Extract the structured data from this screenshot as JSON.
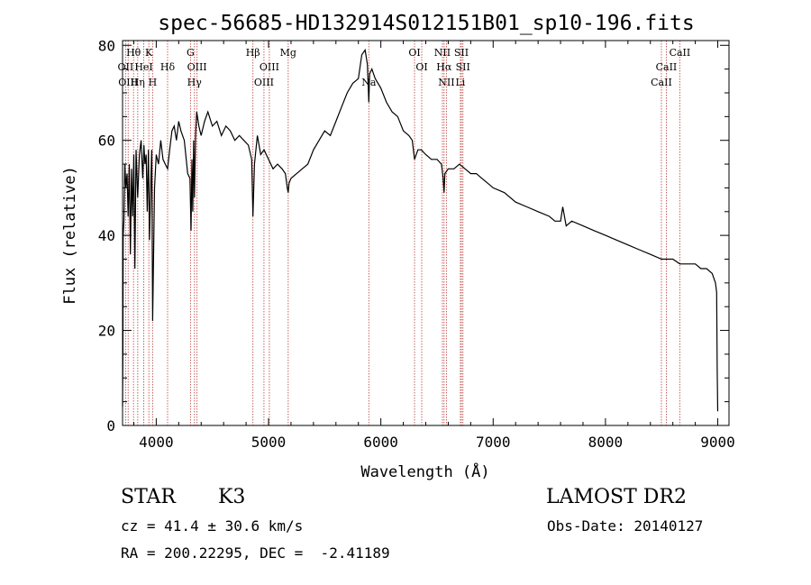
{
  "chart_data": {
    "type": "line",
    "title": "spec-56685-HD132914S012151B01_sp10-196.fits",
    "xlabel": "Wavelength (Å)",
    "ylabel": "Flux (relative)",
    "xlim": [
      3700,
      9100
    ],
    "ylim": [
      0,
      81
    ],
    "xticks": [
      4000,
      5000,
      6000,
      7000,
      8000,
      9000
    ],
    "yticks": [
      0,
      20,
      40,
      60,
      80
    ],
    "line_color": "#000000",
    "marker_color": "#c0504d",
    "grid": false,
    "series": [
      {
        "x": [
          3700,
          3703,
          3706,
          3712,
          3720,
          3730,
          3740,
          3750,
          3760,
          3770,
          3780,
          3790,
          3800,
          3810,
          3820,
          3835,
          3850,
          3865,
          3880,
          3890,
          3900,
          3910,
          3920,
          3930,
          3940,
          3950,
          3960,
          3968,
          3975,
          3985,
          4000,
          4020,
          4040,
          4060,
          4080,
          4101,
          4120,
          4140,
          4160,
          4180,
          4200,
          4220,
          4250,
          4280,
          4300,
          4310,
          4318,
          4325,
          4333,
          4340,
          4350,
          4360,
          4380,
          4400,
          4430,
          4460,
          4500,
          4540,
          4580,
          4620,
          4660,
          4700,
          4740,
          4780,
          4820,
          4850,
          4861,
          4875,
          4900,
          4930,
          4960,
          5000,
          5040,
          5080,
          5120,
          5150,
          5167,
          5175,
          5183,
          5200,
          5250,
          5300,
          5350,
          5400,
          5450,
          5500,
          5550,
          5600,
          5650,
          5700,
          5750,
          5800,
          5830,
          5860,
          5880,
          5893,
          5900,
          5920,
          5950,
          6000,
          6050,
          6100,
          6150,
          6200,
          6250,
          6280,
          6300,
          6330,
          6360,
          6400,
          6450,
          6500,
          6540,
          6555,
          6563,
          6570,
          6600,
          6650,
          6700,
          6750,
          6800,
          6850,
          6900,
          6950,
          7000,
          7100,
          7200,
          7300,
          7400,
          7500,
          7550,
          7600,
          7620,
          7650,
          7700,
          7800,
          7900,
          8000,
          8100,
          8200,
          8300,
          8400,
          8500,
          8542,
          8600,
          8662,
          8700,
          8750,
          8800,
          8850,
          8900,
          8950,
          8980,
          8990,
          8995,
          9000
        ],
        "y": [
          4,
          16,
          40,
          43,
          55,
          50,
          53,
          44,
          55,
          36,
          54,
          44,
          57,
          33,
          58,
          48,
          57,
          60,
          52,
          59,
          55,
          57,
          45,
          58,
          39,
          50,
          58,
          22,
          34,
          50,
          57,
          55,
          60,
          56,
          55,
          54,
          58,
          62,
          63,
          60,
          64,
          62,
          60,
          53,
          52,
          41,
          56,
          45,
          60,
          48,
          61,
          66,
          63,
          61,
          64,
          66,
          63,
          64,
          61,
          63,
          62,
          60,
          61,
          60,
          59,
          56,
          44,
          55,
          61,
          57,
          58,
          56,
          54,
          55,
          54,
          53,
          50,
          49,
          51,
          52,
          53,
          54,
          55,
          58,
          60,
          62,
          61,
          64,
          67,
          70,
          72,
          73,
          78,
          79,
          76,
          68,
          74,
          75,
          73,
          71,
          68,
          66,
          65,
          62,
          61,
          60,
          56,
          58,
          58,
          57,
          56,
          56,
          55,
          52,
          49,
          53,
          54,
          54,
          55,
          54,
          53,
          53,
          52,
          51,
          50,
          49,
          47,
          46,
          45,
          44,
          43,
          43,
          46,
          42,
          43,
          42,
          41,
          40,
          39,
          38,
          37,
          36,
          35,
          35,
          35,
          34,
          34,
          34,
          34,
          33,
          33,
          32,
          30,
          28,
          12,
          3
        ]
      }
    ],
    "lines": [
      {
        "label": "Hθ",
        "x": 3798,
        "row": 0
      },
      {
        "label": "K",
        "x": 3934,
        "row": 0
      },
      {
        "label": "G",
        "x": 4305,
        "row": 0
      },
      {
        "label": "Hβ",
        "x": 4861,
        "row": 0
      },
      {
        "label": "Mg",
        "x": 5175,
        "row": 0
      },
      {
        "label": "OI",
        "x": 6300,
        "row": 0
      },
      {
        "label": "NII",
        "x": 6548,
        "row": 0
      },
      {
        "label": "SII",
        "x": 6717,
        "row": 0
      },
      {
        "label": "CaII",
        "x": 8662,
        "row": 0
      },
      {
        "label": "OII",
        "x": 3727,
        "row": 1
      },
      {
        "label": "HeI",
        "x": 3889,
        "row": 1
      },
      {
        "label": "Hδ",
        "x": 4101,
        "row": 1
      },
      {
        "label": "OIII",
        "x": 4363,
        "row": 1
      },
      {
        "label": "OIII",
        "x": 5007,
        "row": 1
      },
      {
        "label": "OI",
        "x": 6364,
        "row": 1
      },
      {
        "label": "Hα",
        "x": 6563,
        "row": 1
      },
      {
        "label": "SII",
        "x": 6731,
        "row": 1
      },
      {
        "label": "CaII",
        "x": 8542,
        "row": 1
      },
      {
        "label": "OIII",
        "x": 3750,
        "row": 2
      },
      {
        "label": "Hη",
        "x": 3835,
        "row": 2
      },
      {
        "label": "H",
        "x": 3968,
        "row": 2
      },
      {
        "label": "Hγ",
        "x": 4340,
        "row": 2
      },
      {
        "label": "OIII",
        "x": 4959,
        "row": 2
      },
      {
        "label": "Na",
        "x": 5893,
        "row": 2
      },
      {
        "label": "NII",
        "x": 6584,
        "row": 2
      },
      {
        "label": "Li",
        "x": 6708,
        "row": 2
      },
      {
        "label": "CaII",
        "x": 8498,
        "row": 2
      }
    ]
  },
  "info": {
    "object_type": "STAR",
    "subclass": "K3",
    "survey": "LAMOST DR2",
    "cz": "cz = 41.4 ± 30.6 km/s",
    "obs_date": "Obs-Date: 20140127",
    "coords": "RA = 200.22295, DEC =  -2.41189"
  }
}
